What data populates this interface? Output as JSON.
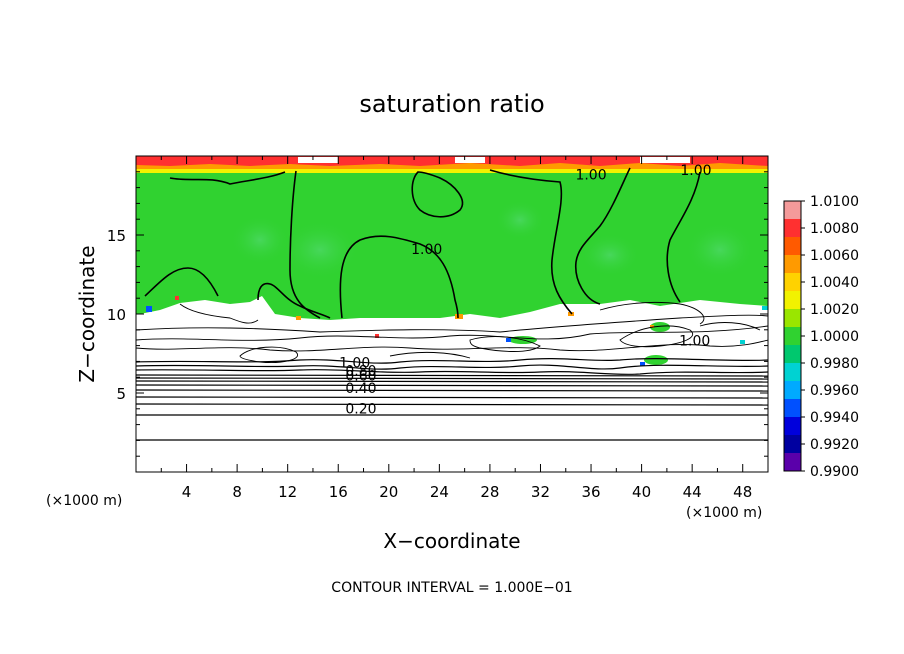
{
  "chart_data": {
    "type": "heatmap",
    "title": "saturation ratio",
    "xlabel": "X−coordinate",
    "ylabel": "Z−coordinate",
    "x_unit_left": "(×1000 m)",
    "x_unit_right": "(×1000 m)",
    "xlim": [
      0,
      50
    ],
    "ylim": [
      0,
      20
    ],
    "x_ticks": [
      4,
      8,
      12,
      16,
      20,
      24,
      28,
      32,
      36,
      40,
      44,
      48
    ],
    "x_tick_labels": [
      "4",
      "8",
      "12",
      "16",
      "20",
      "24",
      "28",
      "32",
      "36",
      "40",
      "44",
      "48"
    ],
    "y_ticks": [
      5,
      10,
      15
    ],
    "y_tick_labels": [
      "5",
      "10",
      "15"
    ],
    "colorbar": {
      "labels": [
        "1.0100",
        "1.0080",
        "1.0060",
        "1.0040",
        "1.0020",
        "1.0000",
        "0.9980",
        "0.9960",
        "0.9940",
        "0.9920",
        "0.9900"
      ],
      "colors": [
        "#f49a9a",
        "#ff3030",
        "#ff5a00",
        "#ff9a00",
        "#ffd200",
        "#f2f200",
        "#9ae600",
        "#30d230",
        "#00c86e",
        "#00d2d2",
        "#00aaff",
        "#0050ff",
        "#0000dc",
        "#0000a0",
        "#5a00aa"
      ]
    },
    "contour_labels": [
      {
        "text": "1.00",
        "x": 17.3,
        "y": 6.6
      },
      {
        "text": "0.80",
        "x": 17.8,
        "y": 6.1
      },
      {
        "text": "0.60",
        "x": 17.8,
        "y": 5.8
      },
      {
        "text": "0.40",
        "x": 17.8,
        "y": 5.0
      },
      {
        "text": "0.20",
        "x": 17.8,
        "y": 3.7
      },
      {
        "text": "1.00",
        "x": 23.0,
        "y": 13.8
      },
      {
        "text": "1.00",
        "x": 36.0,
        "y": 18.5
      },
      {
        "text": "1.00",
        "x": 44.3,
        "y": 18.8
      },
      {
        "text": "1.00",
        "x": 44.2,
        "y": 8.0
      }
    ],
    "contour_interval_text": "CONTOUR INTERVAL = 1.000E−01"
  }
}
